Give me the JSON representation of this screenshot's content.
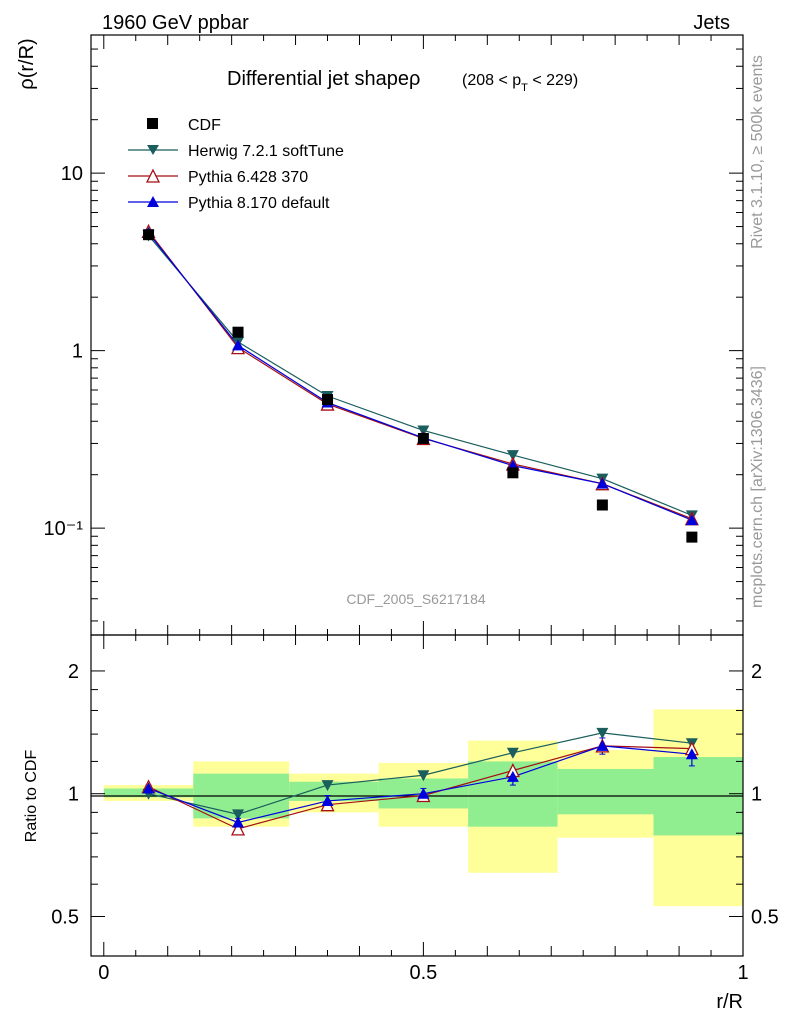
{
  "header": {
    "left": "1960 GeV ppbar",
    "right": "Jets"
  },
  "side_text": {
    "rivet": "Rivet 3.1.10, ≥ 500k events",
    "mcplots": "mcplots.cern.ch [arXiv:1306.3436]"
  },
  "chart_data": {
    "type": "line",
    "title_main": "Differential jet shapeρ",
    "title_sub": "(208 < p",
    "title_sub_index": "T",
    "title_sub_end": " < 229)",
    "analysis_id": "CDF_2005_S6217184",
    "ylabel_top": "ρ(r/R)",
    "ylabel_bottom": "Ratio to CDF",
    "xlabel": "r/R",
    "x_range": [
      -0.02,
      1.0
    ],
    "y_range_top": [
      0.025,
      60
    ],
    "y_scale_top": "log",
    "y_range_bottom": [
      0.4,
      2.45
    ],
    "y_scale_bottom": "log",
    "y_ticks_top": [
      {
        "value": 10,
        "label": "10"
      },
      {
        "value": 1,
        "label": "1"
      },
      {
        "value": 0.1,
        "label": "10⁻¹"
      }
    ],
    "y_ticks_bottom": [
      {
        "value": 2,
        "label": "2"
      },
      {
        "value": 1,
        "label": "1"
      },
      {
        "value": 0.5,
        "label": "0.5"
      }
    ],
    "x_ticks": [
      {
        "value": 0,
        "label": "0"
      },
      {
        "value": 0.5,
        "label": "0.5"
      },
      {
        "value": 1,
        "label": "1"
      }
    ],
    "legend_position": "top-left",
    "x": [
      0.07,
      0.21,
      0.35,
      0.5,
      0.64,
      0.78,
      0.92
    ],
    "bins": [
      [
        0.0,
        0.14
      ],
      [
        0.14,
        0.29
      ],
      [
        0.29,
        0.43
      ],
      [
        0.43,
        0.57
      ],
      [
        0.57,
        0.71
      ],
      [
        0.71,
        0.86
      ],
      [
        0.86,
        1.0
      ]
    ],
    "data": {
      "name": "CDF",
      "values": [
        4.5,
        1.27,
        0.53,
        0.32,
        0.205,
        0.135,
        0.089
      ],
      "band_inner": [
        [
          0.98,
          1.03
        ],
        [
          0.87,
          1.12
        ],
        [
          0.96,
          1.07
        ],
        [
          0.92,
          1.09
        ],
        [
          0.83,
          1.2
        ],
        [
          0.89,
          1.15
        ],
        [
          0.79,
          1.23
        ]
      ],
      "band_outer": [
        [
          0.96,
          1.05
        ],
        [
          0.83,
          1.2
        ],
        [
          0.9,
          1.12
        ],
        [
          0.83,
          1.19
        ],
        [
          0.64,
          1.35
        ],
        [
          0.78,
          1.28
        ],
        [
          0.53,
          1.61
        ]
      ],
      "color": "#000000"
    },
    "series": [
      {
        "name": "Herwig 7.2.1 softTune",
        "color": "#1b5e5e",
        "marker": "triangle-down",
        "values": [
          4.45,
          1.12,
          0.555,
          0.355,
          0.258,
          0.19,
          0.118
        ],
        "ratio": [
          1.0,
          0.89,
          1.05,
          1.11,
          1.26,
          1.41,
          1.33
        ],
        "ratio_err": [
          0,
          0,
          0,
          0,
          0,
          0,
          0
        ]
      },
      {
        "name": "Pythia 6.428 370",
        "color": "#a50f15",
        "marker": "triangle-open",
        "values": [
          4.7,
          1.04,
          0.5,
          0.32,
          0.23,
          0.178,
          0.113
        ],
        "ratio": [
          1.04,
          0.82,
          0.94,
          0.99,
          1.14,
          1.31,
          1.29
        ],
        "ratio_err": [
          0,
          0,
          0,
          0,
          0,
          0,
          0
        ]
      },
      {
        "name": "Pythia 8.170 default",
        "color": "#0000dd",
        "marker": "triangle-up",
        "values": [
          4.6,
          1.07,
          0.51,
          0.322,
          0.225,
          0.178,
          0.111
        ],
        "ratio": [
          1.03,
          0.85,
          0.96,
          1.0,
          1.1,
          1.31,
          1.25
        ],
        "ratio_err": [
          0.02,
          0.02,
          0.03,
          0.03,
          0.05,
          0.06,
          0.08
        ]
      }
    ],
    "reference_line": 1,
    "colors": {
      "band_inner": "#90ee90",
      "band_outer": "#ffff99",
      "reference": "#000000",
      "label_gray": "#999999"
    }
  }
}
